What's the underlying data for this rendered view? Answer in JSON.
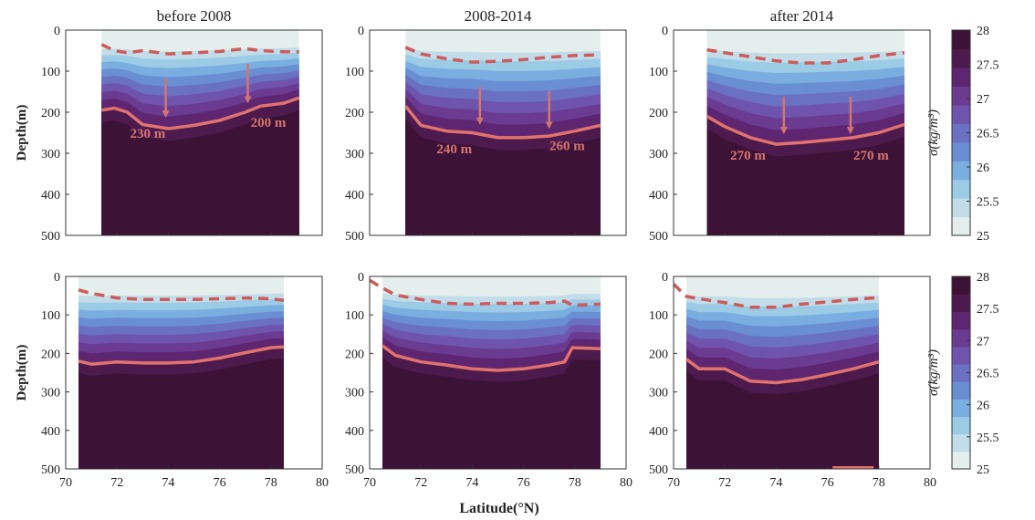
{
  "xlabel": "Latitude(°N)",
  "ylabel": "Depth(m)",
  "colorbar": {
    "label": "σ(kg/m³)",
    "ticks": [
      "25",
      "25.5",
      "26",
      "26.5",
      "27",
      "27.5",
      "28"
    ],
    "range": [
      25,
      28
    ],
    "colors": [
      "#e4eeec",
      "#c2dde9",
      "#9ccbe6",
      "#7aaee0",
      "#6a8ed2",
      "#6a70c2",
      "#6e54ac",
      "#6b3a91",
      "#5e2570",
      "#4d1a4d",
      "#3d1237"
    ]
  },
  "chart_data": [
    {
      "type": "contour",
      "title": "before 2008",
      "xlim": [
        70,
        80
      ],
      "ylim": [
        500,
        0
      ],
      "xticks": [
        70,
        72,
        74,
        76,
        78,
        80
      ],
      "yticks": [
        0,
        100,
        200,
        300,
        400,
        500
      ],
      "data_x_range": [
        71.4,
        79.1
      ],
      "x": [
        71.4,
        71.9,
        72.4,
        73.0,
        74.0,
        75.0,
        76.0,
        77.0,
        77.6,
        78.5,
        79.1
      ],
      "surface_layer_depth": [
        35,
        50,
        55,
        50,
        58,
        55,
        52,
        45,
        50,
        53,
        53
      ],
      "isopycnal_depth": [
        195,
        190,
        200,
        230,
        240,
        232,
        220,
        200,
        185,
        178,
        165
      ],
      "annotations": [
        {
          "text": "230 m",
          "x": 73.2,
          "depth": 262
        },
        {
          "text": "200 m",
          "x": 77.9,
          "depth": 235
        }
      ],
      "arrows": [
        {
          "x": 73.9,
          "from_depth": 118,
          "to_depth": 218
        },
        {
          "x": 77.1,
          "from_depth": 82,
          "to_depth": 183
        }
      ]
    },
    {
      "type": "contour",
      "title": "2008-2014",
      "xlim": [
        70,
        80
      ],
      "ylim": [
        500,
        0
      ],
      "xticks": [
        70,
        72,
        74,
        76,
        78,
        80
      ],
      "yticks": [
        0,
        100,
        200,
        300,
        400,
        500
      ],
      "data_x_range": [
        71.4,
        79.0
      ],
      "x": [
        71.4,
        72.0,
        73.0,
        74.0,
        75.0,
        76.0,
        77.0,
        78.0,
        79.0
      ],
      "surface_layer_depth": [
        42,
        58,
        70,
        78,
        76,
        72,
        66,
        62,
        60
      ],
      "isopycnal_depth": [
        185,
        232,
        246,
        250,
        262,
        262,
        258,
        246,
        232
      ],
      "annotations": [
        {
          "text": "240 m",
          "x": 73.3,
          "depth": 300
        },
        {
          "text": "260 m",
          "x": 77.7,
          "depth": 292
        }
      ],
      "arrows": [
        {
          "x": 74.3,
          "from_depth": 138,
          "to_depth": 235
        },
        {
          "x": 77.0,
          "from_depth": 148,
          "to_depth": 245
        }
      ]
    },
    {
      "type": "contour",
      "title": "after 2014",
      "xlim": [
        70,
        80
      ],
      "ylim": [
        500,
        0
      ],
      "xticks": [
        70,
        72,
        74,
        76,
        78,
        80
      ],
      "yticks": [
        0,
        100,
        200,
        300,
        400,
        500
      ],
      "data_x_range": [
        71.3,
        79.0
      ],
      "x": [
        71.3,
        72.0,
        73.0,
        74.0,
        75.0,
        76.0,
        77.0,
        78.0,
        79.0
      ],
      "surface_layer_depth": [
        48,
        55,
        65,
        75,
        80,
        80,
        72,
        62,
        55
      ],
      "isopycnal_depth": [
        210,
        235,
        262,
        278,
        274,
        268,
        262,
        250,
        230
      ],
      "annotations": [
        {
          "text": "270 m",
          "x": 72.9,
          "depth": 315
        },
        {
          "text": "270 m",
          "x": 77.7,
          "depth": 315
        }
      ],
      "arrows": [
        {
          "x": 74.3,
          "from_depth": 162,
          "to_depth": 258
        },
        {
          "x": 76.9,
          "from_depth": 162,
          "to_depth": 258
        }
      ]
    },
    {
      "type": "contour",
      "title": "",
      "xlim": [
        70,
        80
      ],
      "ylim": [
        500,
        0
      ],
      "xticks": [
        70,
        72,
        74,
        76,
        78,
        80
      ],
      "yticks": [
        0,
        100,
        200,
        300,
        400,
        500
      ],
      "data_x_range": [
        70.5,
        78.5
      ],
      "x": [
        70.5,
        71.0,
        72.0,
        73.0,
        74.0,
        75.0,
        76.0,
        77.0,
        78.0,
        78.5
      ],
      "surface_layer_depth": [
        35,
        44,
        56,
        60,
        60,
        60,
        58,
        56,
        58,
        62
      ],
      "isopycnal_depth": [
        220,
        228,
        222,
        225,
        225,
        222,
        212,
        198,
        185,
        183
      ],
      "annotations": [],
      "arrows": []
    },
    {
      "type": "contour",
      "title": "",
      "xlim": [
        70,
        80
      ],
      "ylim": [
        500,
        0
      ],
      "xticks": [
        70,
        72,
        74,
        76,
        78,
        80
      ],
      "yticks": [
        0,
        100,
        200,
        300,
        400,
        500
      ],
      "data_x_range": [
        70.5,
        79.0
      ],
      "x": [
        70.0,
        70.5,
        71.0,
        72.0,
        73.0,
        74.0,
        75.0,
        76.0,
        77.0,
        77.6,
        77.9,
        79.0
      ],
      "surface_layer_depth": [
        10,
        30,
        48,
        60,
        70,
        72,
        70,
        70,
        68,
        64,
        75,
        72
      ],
      "isopycnal_depth": [
        null,
        180,
        205,
        222,
        230,
        240,
        244,
        240,
        230,
        222,
        185,
        188
      ],
      "annotations": [],
      "arrows": []
    },
    {
      "type": "contour",
      "title": "",
      "xlim": [
        70,
        80
      ],
      "ylim": [
        500,
        0
      ],
      "xticks": [
        70,
        72,
        74,
        76,
        78,
        80
      ],
      "yticks": [
        0,
        100,
        200,
        300,
        400,
        500
      ],
      "data_x_range": [
        70.5,
        78.0
      ],
      "x": [
        70.0,
        70.5,
        71.0,
        72.0,
        73.0,
        74.0,
        75.0,
        76.0,
        77.0,
        78.0
      ],
      "surface_layer_depth": [
        20,
        52,
        58,
        68,
        80,
        80,
        72,
        66,
        60,
        55
      ],
      "isopycnal_depth": [
        null,
        215,
        240,
        240,
        272,
        276,
        268,
        255,
        240,
        222
      ],
      "annotations": [],
      "arrows": [],
      "bottom_segment": {
        "x": [
          76.2,
          77.8
        ],
        "depth": 500
      }
    }
  ]
}
